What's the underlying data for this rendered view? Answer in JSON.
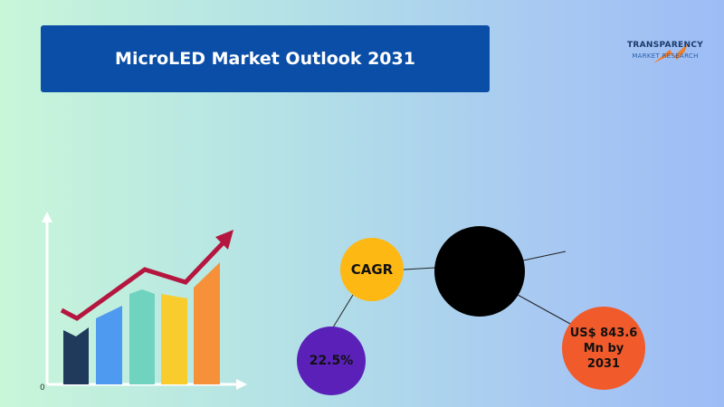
{
  "header": {
    "title": "MicroLED Market Outlook 2031"
  },
  "logo": {
    "name": "TRANSPARENCY",
    "subtitle": "MARKET RESEARCH"
  },
  "illustration": {
    "axis_label": "0"
  },
  "metrics": {
    "cagr_label": "CAGR",
    "cagr_value": "22.5%",
    "market_value": "US$ 843.6 Mn by 2031"
  }
}
